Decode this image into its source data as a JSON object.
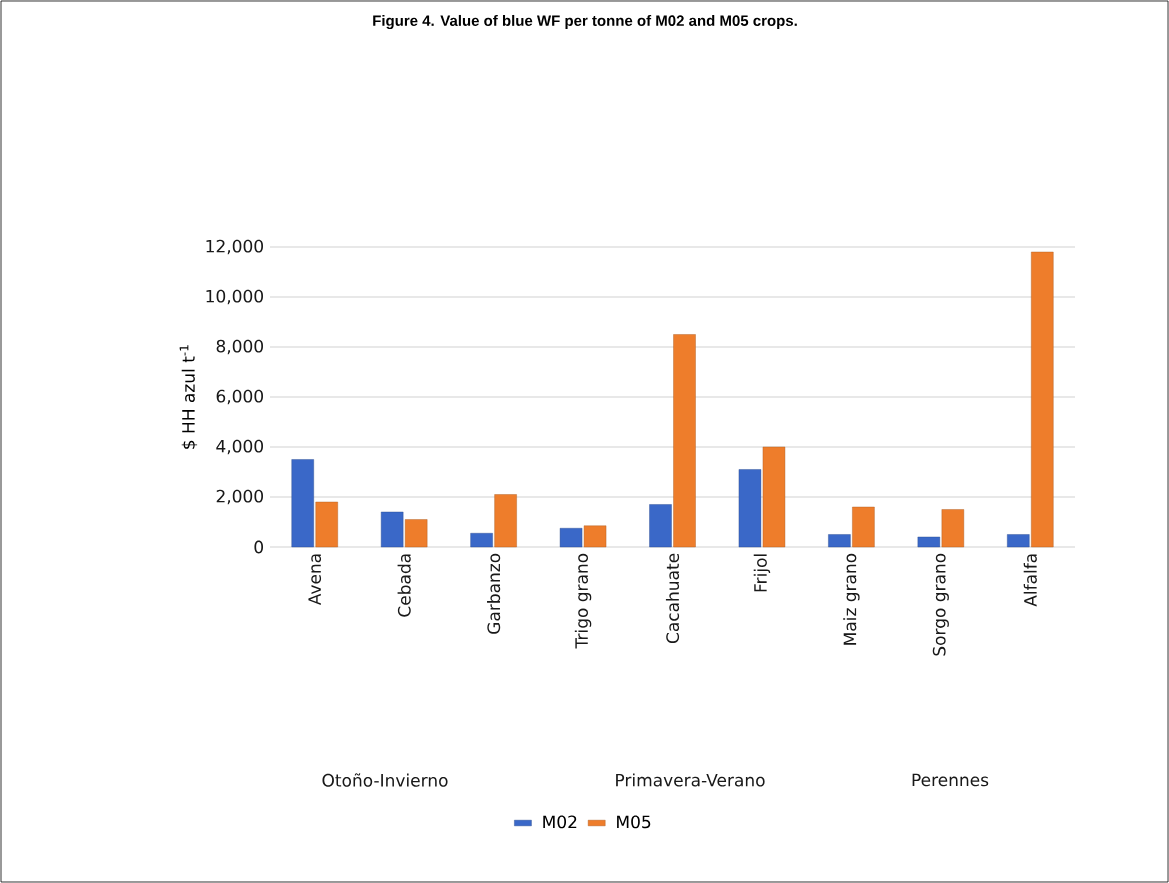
{
  "chart_data": {
    "type": "bar",
    "title": "Figure 4. Value of blue WF per tonne of M02 and M05 crops.",
    "ylabel": "$ HH azul t$^{-1}$",
    "categories": [
      "Avena",
      "Cebada",
      "Garbanzo",
      "Trigo grano",
      "Cacahuate",
      "Frijol",
      "Maiz grano",
      "Sorgo grano",
      "Alfalfa"
    ],
    "series": [
      {
        "name": "M02",
        "color": "#3a68c8",
        "values": [
          3500,
          1400,
          550,
          750,
          1700,
          3100,
          500,
          400,
          500
        ]
      },
      {
        "name": "M05",
        "color": "#ee7d2b",
        "values": [
          1800,
          1100,
          2100,
          850,
          8500,
          4000,
          1600,
          1500,
          11800
        ]
      }
    ],
    "ylim": [
      0,
      12000
    ],
    "yticks": [
      0,
      {
        "value": 2000,
        "label": "2,000"
      },
      {
        "value": 4000,
        "label": "4,000"
      },
      {
        "value": 6000,
        "label": "6,000"
      },
      {
        "value": 8000,
        "label": "8,000"
      },
      {
        "value": 10000,
        "label": "10,000"
      },
      {
        "value": 12000,
        "label": "12,000"
      }
    ],
    "grid": "y",
    "legend": "bottom",
    "annotations": [
      "Otoño-Invierno",
      "Primavera-Verano",
      "Perennes"
    ]
  }
}
